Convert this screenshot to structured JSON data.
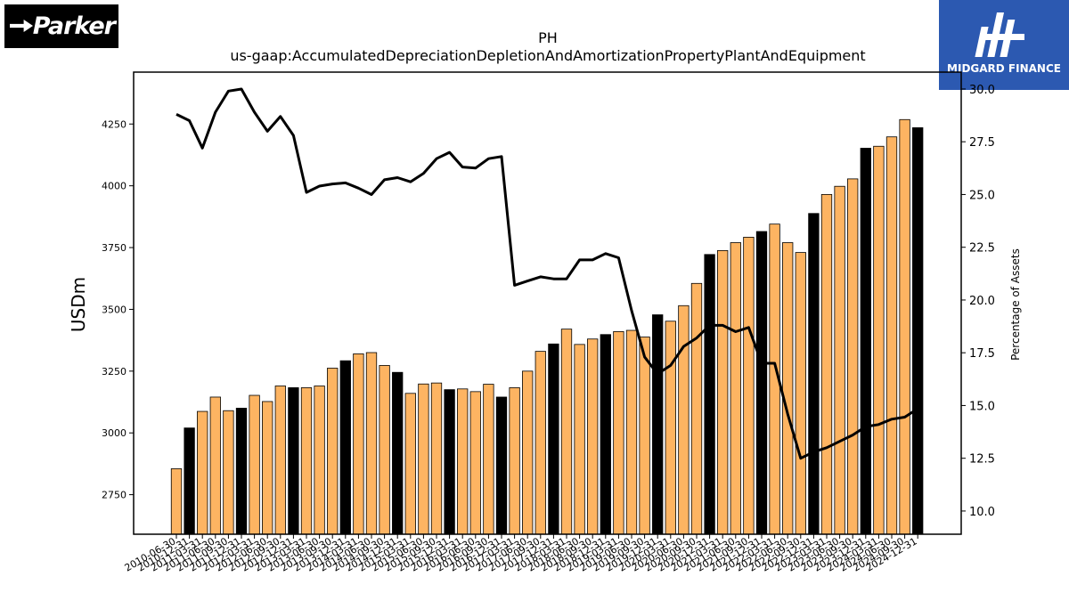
{
  "logos": {
    "left": "Parker",
    "right": "MIDGARD FINANCE"
  },
  "chart_data": {
    "type": "bar",
    "title": "PH",
    "subtitle": "us-gaap:AccumulatedDepreciationDepletionAndAmortizationPropertyPlantAndEquipment",
    "ylabel": "USDm",
    "y2label": "Percentage of Assets",
    "ylim": [
      2590,
      4460
    ],
    "y2lim": [
      8.9,
      30.8
    ],
    "yticks": [
      2750,
      3000,
      3250,
      3500,
      3750,
      4000,
      4250
    ],
    "y2ticks": [
      10.0,
      12.5,
      15.0,
      17.5,
      20.0,
      22.5,
      25.0,
      27.5,
      30.0
    ],
    "colors": {
      "bar": "#fdb462",
      "bar_highlight": "#000000",
      "line": "#000000"
    },
    "categories": [
      "2010-06-30",
      "2010-12-31",
      "2011-03-31",
      "2011-06-30",
      "2011-09-30",
      "2011-12-31",
      "2012-03-31",
      "2012-06-30",
      "2012-09-30",
      "2012-12-31",
      "2013-03-31",
      "2013-06-30",
      "2013-09-30",
      "2013-12-31",
      "2014-03-31",
      "2014-06-30",
      "2014-09-30",
      "2014-12-31",
      "2015-03-31",
      "2015-06-30",
      "2015-09-30",
      "2015-12-31",
      "2016-03-31",
      "2016-06-30",
      "2016-09-30",
      "2016-12-31",
      "2017-03-31",
      "2017-06-30",
      "2017-09-30",
      "2017-12-31",
      "2018-03-31",
      "2018-06-30",
      "2018-09-30",
      "2018-12-31",
      "2019-03-31",
      "2019-06-30",
      "2019-09-30",
      "2019-12-31",
      "2020-03-31",
      "2020-06-30",
      "2020-09-30",
      "2020-12-31",
      "2021-03-31",
      "2021-06-30",
      "2021-09-30",
      "2021-12-31",
      "2022-03-31",
      "2022-06-30",
      "2022-09-30",
      "2022-12-31",
      "2023-03-31",
      "2023-06-30",
      "2023-09-30",
      "2023-12-31",
      "2024-03-31",
      "2024-06-30",
      "2024-09-30",
      "2024-12-31"
    ],
    "highlight": [
      false,
      true,
      false,
      false,
      false,
      true,
      false,
      false,
      false,
      true,
      false,
      false,
      false,
      true,
      false,
      false,
      false,
      true,
      false,
      false,
      false,
      true,
      false,
      false,
      false,
      true,
      false,
      false,
      false,
      true,
      false,
      false,
      false,
      true,
      false,
      false,
      false,
      true,
      false,
      false,
      false,
      true,
      false,
      false,
      false,
      true,
      false,
      false,
      false,
      true,
      false,
      false,
      false,
      true,
      false,
      false,
      false,
      true
    ],
    "series": [
      {
        "type": "bar",
        "values": [
          2855,
          3020,
          3087,
          3145,
          3090,
          3100,
          3152,
          3127,
          3190,
          3183,
          3183,
          3190,
          3262,
          3292,
          3320,
          3325,
          3273,
          3245,
          3160,
          3198,
          3202,
          3175,
          3178,
          3167,
          3197,
          3145,
          3183,
          3250,
          3330,
          3360,
          3420,
          3358,
          3380,
          3398,
          3410,
          3415,
          3388,
          3478,
          3452,
          3515,
          3605,
          3722,
          3738,
          3770,
          3792,
          3815,
          3845,
          3770,
          3730,
          3888,
          3965,
          3998,
          4028,
          4152,
          4160,
          4198,
          4268,
          4235
        ]
      },
      {
        "type": "line",
        "axis": "right",
        "values": [
          28.8,
          28.5,
          27.2,
          28.9,
          29.9,
          30.0,
          28.9,
          28.0,
          28.7,
          27.8,
          25.1,
          25.4,
          25.5,
          25.55,
          25.3,
          25.0,
          25.7,
          25.8,
          25.6,
          26.0,
          26.7,
          27.0,
          26.3,
          26.25,
          26.7,
          26.8,
          20.7,
          20.9,
          21.1,
          21.0,
          21.0,
          21.9,
          21.9,
          22.2,
          22.0,
          19.5,
          17.3,
          16.5,
          16.9,
          17.8,
          18.2,
          18.8,
          18.8,
          18.5,
          18.7,
          17.0,
          17.0,
          14.6,
          12.5,
          12.8,
          13.0,
          13.3,
          13.6,
          14.0,
          14.1,
          14.35,
          14.45,
          14.85
        ]
      }
    ],
    "grid": false,
    "legend": "none"
  }
}
